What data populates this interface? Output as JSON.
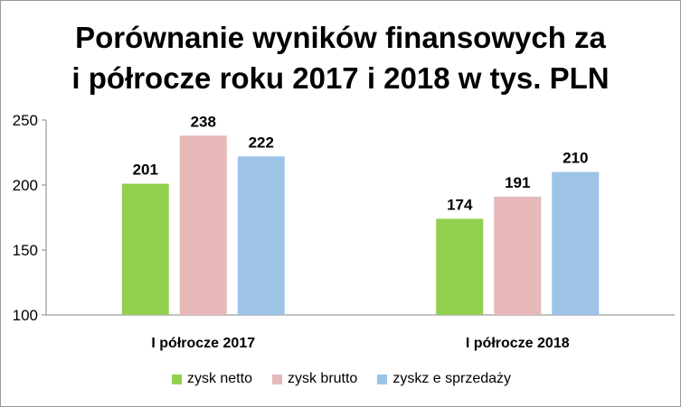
{
  "chart_data": {
    "type": "bar",
    "title_lines": [
      "Porównanie wyników finansowych za",
      "i półrocze roku 2017 i 2018 w tys. PLN"
    ],
    "categories": [
      "I półrocze 2017",
      "I półrocze 2018"
    ],
    "series": [
      {
        "name": "zysk netto",
        "values": [
          201,
          174
        ],
        "color": "#92d050"
      },
      {
        "name": "zysk brutto",
        "values": [
          238,
          191
        ],
        "color": "#e6b9b8"
      },
      {
        "name": "zyskz e sprzedaży",
        "values": [
          222,
          210
        ],
        "color": "#9dc3e6"
      }
    ],
    "ylim": [
      100,
      250
    ],
    "yticks": [
      "100",
      "150",
      "200",
      "250"
    ],
    "data_labels": true,
    "grid": false,
    "legend": "bottom"
  }
}
